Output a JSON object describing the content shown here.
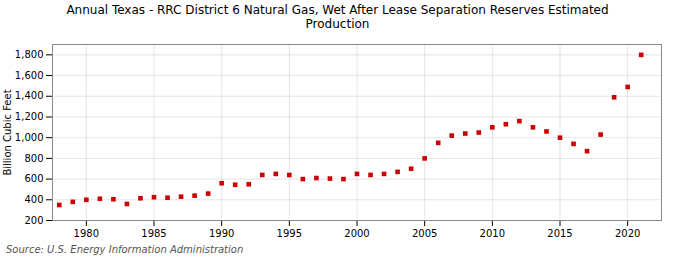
{
  "chart_data": {
    "type": "scatter",
    "title": "Annual Texas - RRC District 6 Natural Gas, Wet After Lease Separation Reserves Estimated\nProduction",
    "ylabel": "Billion Cubic Feet",
    "source": "Source: U.S. Energy Information Administration",
    "x": [
      1978,
      1979,
      1980,
      1981,
      1982,
      1983,
      1984,
      1985,
      1986,
      1987,
      1988,
      1989,
      1990,
      1991,
      1992,
      1993,
      1994,
      1995,
      1996,
      1997,
      1998,
      1999,
      2000,
      2001,
      2002,
      2003,
      2004,
      2005,
      2006,
      2007,
      2008,
      2009,
      2010,
      2011,
      2012,
      2013,
      2014,
      2015,
      2016,
      2017,
      2018,
      2019,
      2020,
      2021
    ],
    "values": [
      350,
      380,
      400,
      410,
      405,
      360,
      415,
      425,
      420,
      430,
      440,
      460,
      560,
      545,
      550,
      640,
      650,
      640,
      600,
      610,
      605,
      600,
      650,
      640,
      650,
      670,
      700,
      800,
      950,
      1020,
      1040,
      1050,
      1100,
      1130,
      1160,
      1100,
      1060,
      1000,
      940,
      870,
      1030,
      1390,
      1490,
      1800
    ],
    "color": "#cc0000",
    "marker": "square",
    "xlim": [
      1977.5,
      2022.5
    ],
    "xticks": [
      1980,
      1985,
      1990,
      1995,
      2000,
      2005,
      2010,
      2015,
      2020
    ],
    "ylim": [
      200,
      1900
    ],
    "yticks": [
      200,
      400,
      600,
      800,
      {
        "value": 1000,
        "label": "1,000"
      },
      {
        "value": 1200,
        "label": "1,200"
      },
      {
        "value": 1400,
        "label": "1,400"
      },
      {
        "value": 1600,
        "label": "1,600"
      },
      {
        "value": 1800,
        "label": "1,800"
      }
    ],
    "grid": true
  }
}
